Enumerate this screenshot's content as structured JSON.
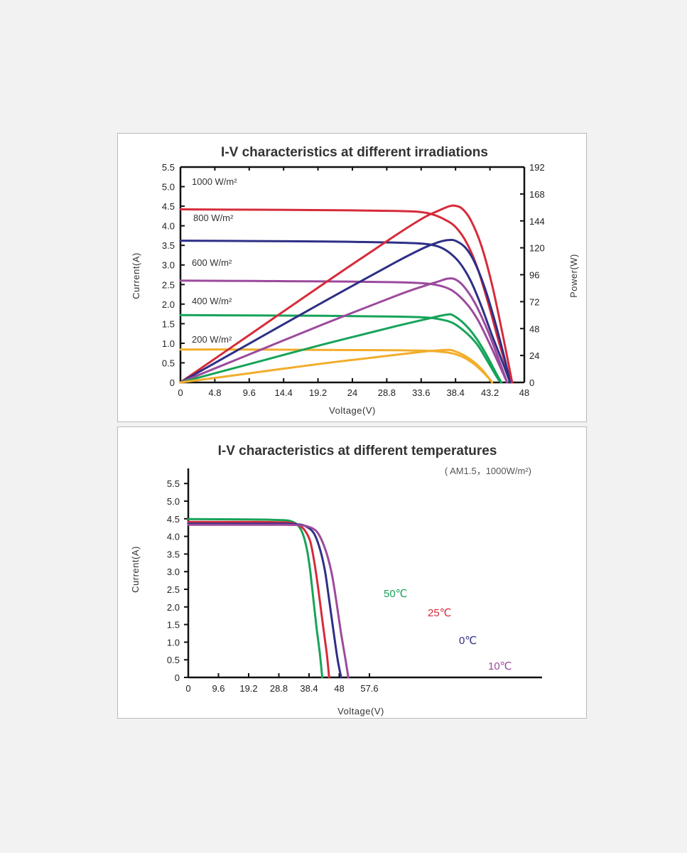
{
  "colors": {
    "red": "#d62b3a",
    "blue": "#2e2f86",
    "purple": "#9b4a9c",
    "green": "#17a35a",
    "orange": "#f2ad2b",
    "axis": "#111111"
  },
  "chart_data": [
    {
      "type": "line",
      "title": "I-V characteristics at different irradiations",
      "xlabel": "Voltage(V)",
      "ylabel": "Current(A)",
      "y2label": "Power(W)",
      "xlim": [
        0,
        48
      ],
      "ylim": [
        0,
        5.5
      ],
      "y2lim": [
        0,
        192
      ],
      "x_ticks": [
        "0",
        "4.8",
        "9.6",
        "14.4",
        "19.2",
        "24",
        "28.8",
        "33.6",
        "38.4",
        "43.2",
        "48"
      ],
      "y_ticks": [
        "0",
        "0.5",
        "1.0",
        "1.5",
        "2.0",
        "2.5",
        "3.0",
        "3.5",
        "4.0",
        "4.5",
        "5.0",
        "5.5"
      ],
      "y2_ticks": [
        "0",
        "24",
        "48",
        "72",
        "96",
        "120",
        "144",
        "168",
        "192"
      ],
      "grid": false,
      "annotations": [
        "1000 W/m²",
        "800 W/m²",
        "600 W/m²",
        "400 W/m²",
        "200 W/m²"
      ],
      "series": [
        {
          "kind": "current",
          "color": "red",
          "points": [
            [
              0,
              4.42
            ],
            [
              10,
              4.41
            ],
            [
              20,
              4.4
            ],
            [
              30,
              4.38
            ],
            [
              33,
              4.36
            ],
            [
              35,
              4.3
            ],
            [
              37,
              4.15
            ],
            [
              38.5,
              3.95
            ],
            [
              40,
              3.55
            ],
            [
              41.5,
              2.9
            ],
            [
              43,
              2.0
            ],
            [
              44.5,
              1.0
            ],
            [
              45.5,
              0.4
            ],
            [
              46.3,
              0
            ]
          ]
        },
        {
          "kind": "current",
          "color": "blue",
          "points": [
            [
              0,
              3.62
            ],
            [
              10,
              3.61
            ],
            [
              20,
              3.6
            ],
            [
              30,
              3.57
            ],
            [
              34,
              3.54
            ],
            [
              36,
              3.47
            ],
            [
              37.5,
              3.32
            ],
            [
              39,
              3.05
            ],
            [
              40.5,
              2.6
            ],
            [
              42,
              1.95
            ],
            [
              43.5,
              1.2
            ],
            [
              45,
              0.5
            ],
            [
              46,
              0
            ]
          ]
        },
        {
          "kind": "current",
          "color": "purple",
          "points": [
            [
              0,
              2.6
            ],
            [
              10,
              2.59
            ],
            [
              20,
              2.58
            ],
            [
              30,
              2.56
            ],
            [
              34,
              2.53
            ],
            [
              36,
              2.48
            ],
            [
              38,
              2.34
            ],
            [
              40,
              2.0
            ],
            [
              41.5,
              1.6
            ],
            [
              43,
              1.05
            ],
            [
              44.5,
              0.45
            ],
            [
              45.6,
              0
            ]
          ]
        },
        {
          "kind": "current",
          "color": "green",
          "points": [
            [
              0,
              1.72
            ],
            [
              10,
              1.71
            ],
            [
              20,
              1.7
            ],
            [
              30,
              1.68
            ],
            [
              34,
              1.66
            ],
            [
              36,
              1.62
            ],
            [
              38,
              1.52
            ],
            [
              40,
              1.25
            ],
            [
              41.5,
              0.95
            ],
            [
              43,
              0.5
            ],
            [
              44.3,
              0.1
            ],
            [
              44.8,
              0
            ]
          ]
        },
        {
          "kind": "current",
          "color": "orange",
          "points": [
            [
              0,
              0.84
            ],
            [
              10,
              0.84
            ],
            [
              20,
              0.83
            ],
            [
              30,
              0.82
            ],
            [
              34,
              0.81
            ],
            [
              36,
              0.79
            ],
            [
              38,
              0.74
            ],
            [
              39.5,
              0.64
            ],
            [
              41,
              0.47
            ],
            [
              42.3,
              0.25
            ],
            [
              43.3,
              0.05
            ],
            [
              43.5,
              0
            ]
          ]
        },
        {
          "kind": "power",
          "color": "red",
          "points": [
            [
              0,
              0
            ],
            [
              10,
              44
            ],
            [
              20,
              88
            ],
            [
              30,
              131
            ],
            [
              34,
              147
            ],
            [
              36,
              153
            ],
            [
              37.5,
              157
            ],
            [
              38.3,
              157.5
            ],
            [
              39.3,
              155
            ],
            [
              40.5,
              145
            ],
            [
              42,
              122
            ],
            [
              43.5,
              87
            ],
            [
              45,
              42
            ],
            [
              46.3,
              0
            ]
          ]
        },
        {
          "kind": "power",
          "color": "blue",
          "points": [
            [
              0,
              0
            ],
            [
              10,
              36
            ],
            [
              20,
              72
            ],
            [
              30,
              107
            ],
            [
              34,
              120
            ],
            [
              36,
              125
            ],
            [
              37.5,
              127
            ],
            [
              38.5,
              126
            ],
            [
              39.8,
              120
            ],
            [
              41,
              108
            ],
            [
              42.5,
              84
            ],
            [
              44,
              52
            ],
            [
              45.3,
              20
            ],
            [
              46,
              0
            ]
          ]
        },
        {
          "kind": "power",
          "color": "purple",
          "points": [
            [
              0,
              0
            ],
            [
              10,
              26
            ],
            [
              20,
              52
            ],
            [
              30,
              77
            ],
            [
              34,
              86
            ],
            [
              36,
              90
            ],
            [
              37.3,
              92.5
            ],
            [
              38.3,
              92
            ],
            [
              39.5,
              86
            ],
            [
              41,
              72
            ],
            [
              42.5,
              52
            ],
            [
              44,
              28
            ],
            [
              45.6,
              0
            ]
          ]
        },
        {
          "kind": "power",
          "color": "green",
          "points": [
            [
              0,
              0
            ],
            [
              10,
              17
            ],
            [
              20,
              34
            ],
            [
              30,
              50
            ],
            [
              34,
              56
            ],
            [
              36,
              59
            ],
            [
              37.3,
              60.5
            ],
            [
              38,
              60
            ],
            [
              39.5,
              53
            ],
            [
              41,
              42
            ],
            [
              42.5,
              27
            ],
            [
              44,
              9
            ],
            [
              44.8,
              0
            ]
          ]
        },
        {
          "kind": "power",
          "color": "orange",
          "points": [
            [
              0,
              0
            ],
            [
              10,
              8.5
            ],
            [
              20,
              17
            ],
            [
              30,
              24.5
            ],
            [
              34,
              27.5
            ],
            [
              36,
              28.6
            ],
            [
              37.2,
              29
            ],
            [
              38,
              28.5
            ],
            [
              39.5,
              24.5
            ],
            [
              41,
              18
            ],
            [
              42.3,
              10
            ],
            [
              43.5,
              0
            ]
          ]
        }
      ]
    },
    {
      "type": "line",
      "title": "I-V characteristics at different temperatures",
      "subtitle": "( AM1.5，1000W/m²)",
      "xlabel": "Voltage(V)",
      "ylabel": "Current(A)",
      "xlim": [
        0,
        60
      ],
      "ylim": [
        0,
        5.8
      ],
      "x_ticks": [
        "0",
        "9.6",
        "19.2",
        "28.8",
        "38.4",
        "48",
        "57.6"
      ],
      "y_ticks": [
        "0",
        "0.5",
        "1.0",
        "1.5",
        "2.0",
        "2.5",
        "3.0",
        "3.5",
        "4.0",
        "4.5",
        "5.0",
        "5.5"
      ],
      "grid": false,
      "series": [
        {
          "name": "50℃",
          "color": "green",
          "points": [
            [
              0,
              4.49
            ],
            [
              20,
              4.48
            ],
            [
              30,
              4.46
            ],
            [
              33,
              4.42
            ],
            [
              35,
              4.3
            ],
            [
              36.5,
              4.05
            ],
            [
              37.8,
              3.6
            ],
            [
              38.8,
              3.0
            ],
            [
              39.8,
              2.2
            ],
            [
              40.8,
              1.4
            ],
            [
              41.8,
              0.7
            ],
            [
              42.6,
              0
            ]
          ]
        },
        {
          "name": "25℃",
          "color": "red",
          "points": [
            [
              0,
              4.41
            ],
            [
              20,
              4.41
            ],
            [
              30,
              4.4
            ],
            [
              33,
              4.38
            ],
            [
              35,
              4.32
            ],
            [
              37,
              4.18
            ],
            [
              38.8,
              3.85
            ],
            [
              40.2,
              3.2
            ],
            [
              41.5,
              2.4
            ],
            [
              42.8,
              1.5
            ],
            [
              44,
              0.7
            ],
            [
              44.8,
              0
            ]
          ]
        },
        {
          "name": "0℃",
          "color": "blue",
          "points": [
            [
              0,
              4.36
            ],
            [
              20,
              4.36
            ],
            [
              30,
              4.36
            ],
            [
              35,
              4.34
            ],
            [
              37.5,
              4.28
            ],
            [
              40,
              4.08
            ],
            [
              42,
              3.6
            ],
            [
              43.5,
              3.0
            ],
            [
              44.8,
              2.2
            ],
            [
              46.2,
              1.3
            ],
            [
              47.5,
              0.5
            ],
            [
              48.6,
              0
            ]
          ]
        },
        {
          "name": "10℃",
          "color": "purple",
          "points": [
            [
              0,
              4.33
            ],
            [
              20,
              4.33
            ],
            [
              30,
              4.33
            ],
            [
              35,
              4.32
            ],
            [
              38,
              4.28
            ],
            [
              41,
              4.12
            ],
            [
              43.5,
              3.65
            ],
            [
              45.5,
              3.0
            ],
            [
              47,
              2.2
            ],
            [
              48.5,
              1.3
            ],
            [
              50,
              0.5
            ],
            [
              50.9,
              0
            ]
          ]
        }
      ]
    }
  ]
}
